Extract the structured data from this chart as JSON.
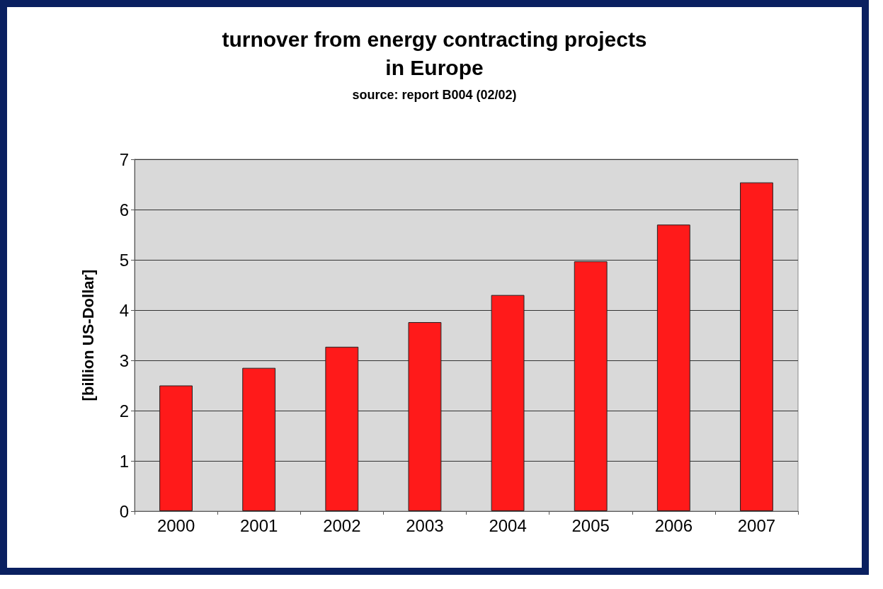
{
  "chart_data": {
    "type": "bar",
    "title": "turnover from energy contracting projects\nin Europe",
    "annotations": [
      "source: report B004 (02/02)"
    ],
    "ylabel": "[billion US-Dollar]",
    "categories": [
      "2000",
      "2001",
      "2002",
      "2003",
      "2004",
      "2005",
      "2006",
      "2007"
    ],
    "values": [
      2.5,
      2.85,
      3.27,
      3.76,
      4.3,
      4.97,
      5.7,
      6.54
    ],
    "color": "#ff1a1a",
    "ylim": [
      0,
      7
    ],
    "yticks": [
      0,
      1,
      2,
      3,
      4,
      5,
      6,
      7
    ],
    "grid": "y"
  }
}
